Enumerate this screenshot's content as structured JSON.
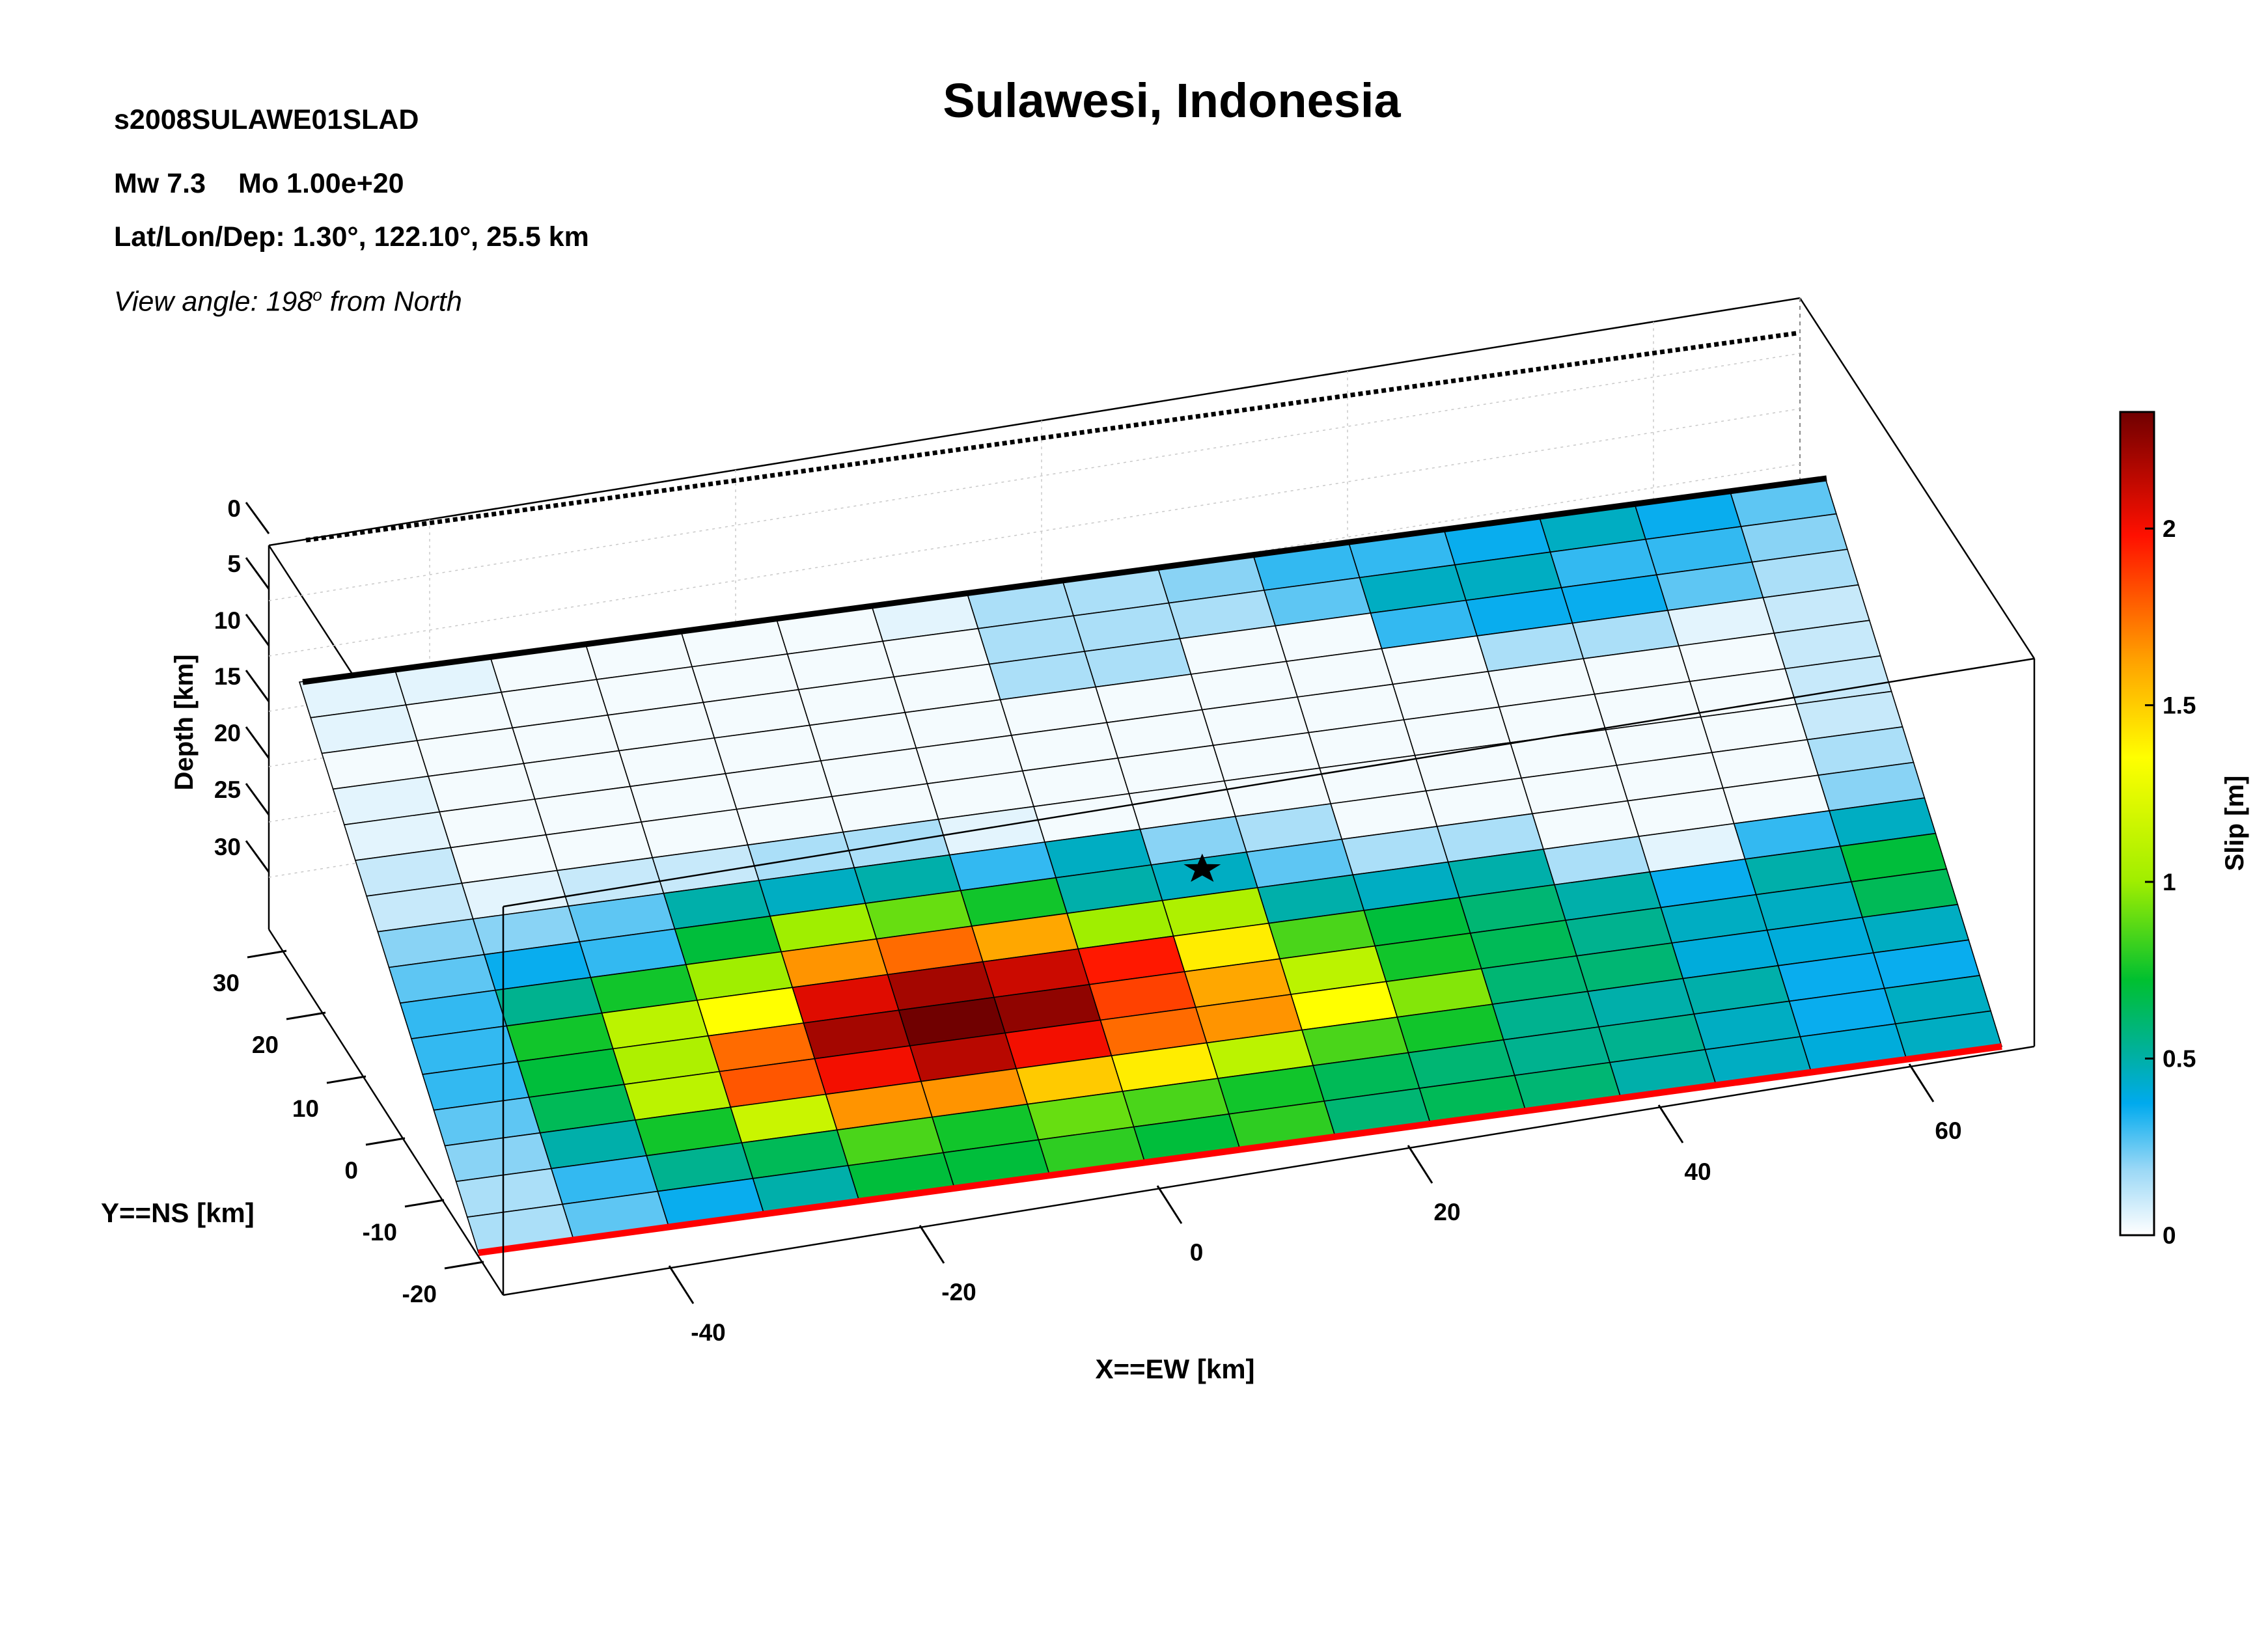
{
  "header": {
    "event_id": "s2008SULAWE01SLAD",
    "mw": "Mw 7.3",
    "mo": "Mo 1.00e+20",
    "location": "Lat/Lon/Dep: 1.30°, 122.10°, 25.5 km",
    "view_angle_prefix": "View angle: 198",
    "view_angle_sup": "o",
    "view_angle_suffix": " from North"
  },
  "chart_data": {
    "type": "heatmap",
    "title": "Sulawesi, Indonesia",
    "xlabel": "X==EW [km]",
    "ylabel": "Y==NS [km]",
    "zlabel": "Depth [km]",
    "colorbar_label": "Slip [m]",
    "x_ticks": [
      "-40",
      "-20",
      "0",
      "20",
      "40",
      "60"
    ],
    "y_ticks": [
      "30",
      "20",
      "10",
      "0",
      "-10",
      "-20"
    ],
    "z_ticks": [
      "0",
      "5",
      "10",
      "15",
      "20",
      "25",
      "30"
    ],
    "colorbar_ticks": [
      "0",
      "0.5",
      "1",
      "1.5",
      "2"
    ],
    "colorbar_range": [
      0,
      2.33
    ],
    "grid": true,
    "colors": {
      "fault_trace": "#ff0000",
      "top_edge": "#000000"
    },
    "slip_m": [
      [
        0.05,
        0.05,
        0.02,
        0.02,
        0.02,
        0.02,
        0.05,
        0.15,
        0.15,
        0.2,
        0.3,
        0.3,
        0.35,
        0.45,
        0.35,
        0.25
      ],
      [
        0.05,
        0.02,
        0.02,
        0.02,
        0.02,
        0.02,
        0.02,
        0.15,
        0.15,
        0.15,
        0.25,
        0.45,
        0.45,
        0.3,
        0.3,
        0.2
      ],
      [
        0.02,
        0.02,
        0.02,
        0.02,
        0.02,
        0.02,
        0.02,
        0.15,
        0.15,
        0.02,
        0.02,
        0.3,
        0.35,
        0.35,
        0.25,
        0.15
      ],
      [
        0.05,
        0.02,
        0.02,
        0.02,
        0.02,
        0.02,
        0.02,
        0.02,
        0.02,
        0.02,
        0.02,
        0.02,
        0.15,
        0.15,
        0.05,
        0.1
      ],
      [
        0.05,
        0.02,
        0.02,
        0.02,
        0.02,
        0.02,
        0.02,
        0.02,
        0.02,
        0.02,
        0.02,
        0.02,
        0.02,
        0.02,
        0.02,
        0.1
      ],
      [
        0.1,
        0.02,
        0.02,
        0.02,
        0.02,
        0.02,
        0.02,
        0.02,
        0.02,
        0.02,
        0.02,
        0.02,
        0.02,
        0.02,
        0.02,
        0.1
      ],
      [
        0.1,
        0.05,
        0.1,
        0.1,
        0.15,
        0.15,
        0.05,
        0.02,
        0.02,
        0.02,
        0.02,
        0.02,
        0.02,
        0.02,
        0.02,
        0.1
      ],
      [
        0.2,
        0.2,
        0.25,
        0.5,
        0.45,
        0.5,
        0.3,
        0.45,
        0.2,
        0.15,
        0.02,
        0.02,
        0.02,
        0.02,
        0.02,
        0.15
      ],
      [
        0.25,
        0.35,
        0.3,
        0.7,
        1.0,
        0.9,
        0.75,
        0.5,
        0.45,
        0.25,
        0.15,
        0.15,
        0.02,
        0.02,
        0.02,
        0.2
      ],
      [
        0.3,
        0.55,
        0.75,
        1.0,
        1.65,
        1.75,
        1.6,
        1.0,
        1.05,
        0.5,
        0.45,
        0.5,
        0.15,
        0.05,
        0.3,
        0.45
      ],
      [
        0.3,
        0.75,
        1.1,
        1.35,
        2.05,
        2.2,
        2.1,
        1.95,
        1.4,
        0.85,
        0.7,
        0.6,
        0.5,
        0.35,
        0.5,
        0.7
      ],
      [
        0.3,
        0.7,
        1.05,
        1.75,
        2.2,
        2.33,
        2.25,
        1.85,
        1.6,
        1.1,
        0.75,
        0.65,
        0.55,
        0.45,
        0.45,
        0.65
      ],
      [
        0.25,
        0.65,
        1.1,
        1.8,
        2.0,
        2.15,
        2.0,
        1.75,
        1.65,
        1.35,
        0.95,
        0.6,
        0.6,
        0.4,
        0.4,
        0.45
      ],
      [
        0.2,
        0.5,
        0.75,
        1.15,
        1.65,
        1.65,
        1.5,
        1.4,
        1.1,
        0.85,
        0.75,
        0.55,
        0.5,
        0.5,
        0.35,
        0.35
      ],
      [
        0.15,
        0.3,
        0.55,
        0.65,
        0.85,
        0.75,
        0.9,
        0.85,
        0.75,
        0.65,
        0.6,
        0.55,
        0.55,
        0.45,
        0.35,
        0.45
      ],
      [
        0.15,
        0.25,
        0.35,
        0.5,
        0.7,
        0.7,
        0.8,
        0.7,
        0.8,
        0.6,
        0.65,
        0.6,
        0.5,
        0.45,
        0.4,
        0.45
      ]
    ],
    "hypocenter": {
      "along_strike_index": 8,
      "down_dip_index": 8
    }
  }
}
